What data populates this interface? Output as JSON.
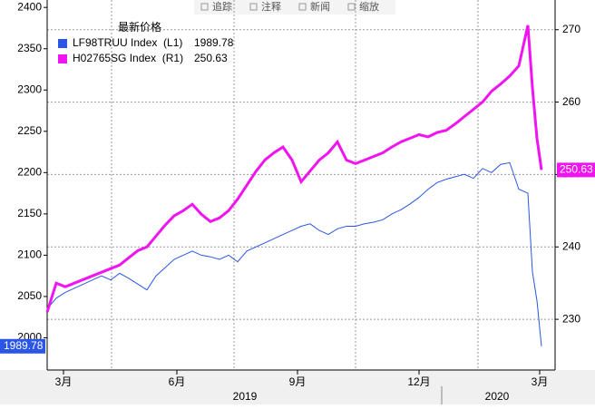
{
  "toolbar": [
    "追踪",
    "注释",
    "新闻",
    "缩放"
  ],
  "chart_data": {
    "type": "line",
    "legend_title": "最新价格",
    "x": [
      0,
      1,
      2,
      3,
      4,
      5,
      6,
      7,
      8,
      9,
      10,
      11,
      12,
      13,
      14,
      15,
      16,
      17,
      18,
      19,
      20,
      21,
      22,
      23,
      24,
      25,
      26,
      27,
      28,
      29,
      30,
      31,
      32,
      33,
      34,
      35,
      36,
      37,
      38,
      39,
      40,
      41,
      42,
      43,
      44,
      45,
      46,
      47,
      48,
      49,
      50,
      51,
      52,
      53,
      53.5,
      54,
      54.5
    ],
    "xlim": [
      0,
      56
    ],
    "xticks": [
      {
        "value": 1.8,
        "label": "3月"
      },
      {
        "value": 14.3,
        "label": "6月"
      },
      {
        "value": 27.6,
        "label": "9月"
      },
      {
        "value": 41,
        "label": "12月"
      },
      {
        "value": 54.3,
        "label": "3月"
      }
    ],
    "xgrid": [
      7.1,
      20.6,
      34,
      47.5
    ],
    "year_labels": [
      "2019",
      "2020"
    ],
    "ylim": [
      1961,
      2409
    ],
    "yticks": [
      2000,
      2050,
      2100,
      2150,
      2200,
      2250,
      2300,
      2350,
      2400
    ],
    "y2lim": [
      223,
      274.1
    ],
    "y2ticks": [
      230,
      240,
      250,
      260,
      270
    ],
    "grid": true,
    "series": [
      {
        "name": "LF98TRUU Index  (L1)",
        "color": "#2b55e6",
        "values": [
          2035,
          2048,
          2055,
          2060,
          2065,
          2070,
          2075,
          2070,
          2078,
          2072,
          2065,
          2058,
          2075,
          2085,
          2095,
          2100,
          2105,
          2100,
          2098,
          2095,
          2100,
          2092,
          2105,
          2110,
          2115,
          2120,
          2125,
          2130,
          2135,
          2138,
          2130,
          2125,
          2132,
          2135,
          2135,
          2138,
          2140,
          2143,
          2150,
          2155,
          2162,
          2170,
          2180,
          2188,
          2192,
          2195,
          2198,
          2193,
          2205,
          2200,
          2210,
          2212,
          2180,
          2175,
          2080,
          2045,
          1989.78
        ]
      },
      {
        "name": "H02765SG Index  (R1)",
        "color": "#f014f0",
        "axis": "y2",
        "values": [
          231,
          235,
          234.5,
          235,
          235.5,
          236,
          236.5,
          237,
          237.5,
          238.5,
          239.5,
          240,
          241.5,
          243,
          244.3,
          245,
          245.9,
          244.5,
          243.5,
          244,
          245,
          246.6,
          248.5,
          250.4,
          252,
          253,
          253.8,
          252,
          249,
          250.5,
          252,
          253,
          254.5,
          252,
          251.5,
          252,
          252.5,
          253,
          253.8,
          254.5,
          255,
          255.5,
          255.2,
          255.8,
          256.1,
          257,
          258,
          259,
          260,
          261.5,
          262.5,
          263.6,
          265,
          270.6,
          262,
          255,
          250.63
        ]
      }
    ]
  }
}
